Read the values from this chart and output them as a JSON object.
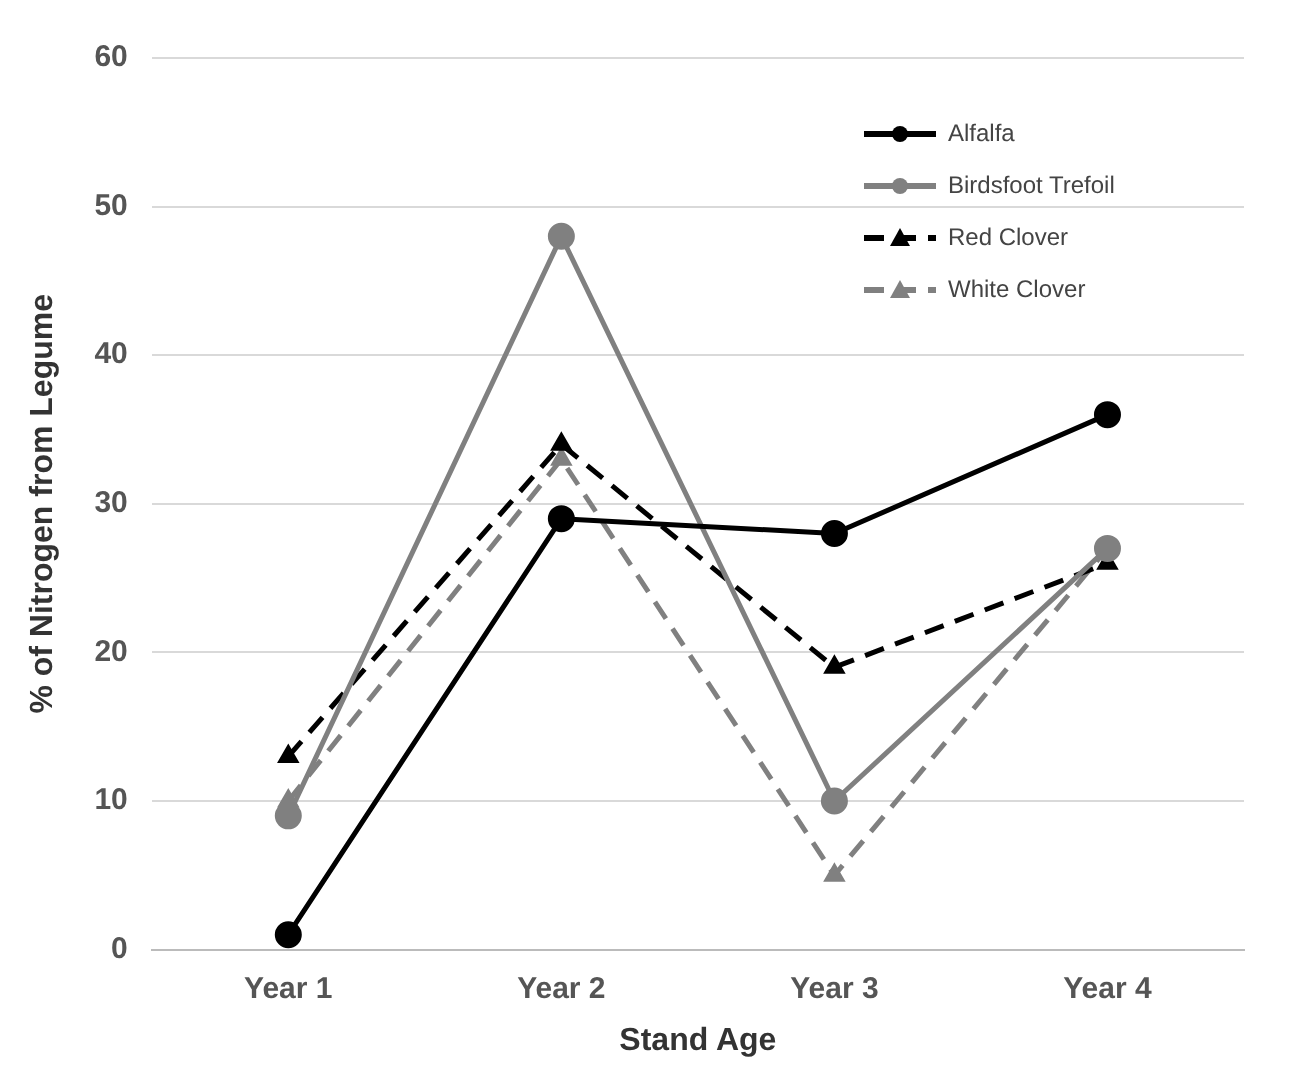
{
  "chart_data": {
    "type": "line",
    "xlabel": "Stand Age",
    "ylabel": "% of Nitrogen from Legume",
    "categories": [
      "Year 1",
      "Year 2",
      "Year 3",
      "Year 4"
    ],
    "series": [
      {
        "name": "Alfalfa",
        "color": "#000000",
        "values": [
          1,
          29,
          28,
          36
        ],
        "marker": "circle",
        "line_style": "solid"
      },
      {
        "name": "Birdsfoot Trefoil",
        "color": "#808080",
        "values": [
          9,
          48,
          10,
          27
        ],
        "marker": "circle",
        "line_style": "solid"
      },
      {
        "name": "Red Clover",
        "color": "#000000",
        "values": [
          13,
          34,
          19,
          26
        ],
        "marker": "triangle",
        "line_style": "dashed"
      },
      {
        "name": "White Clover",
        "color": "#808080",
        "values": [
          10,
          33,
          5,
          27
        ],
        "marker": "triangle",
        "line_style": "dashed"
      }
    ],
    "ylim": [
      0,
      60
    ],
    "yticks": [
      0,
      10,
      20,
      30,
      40,
      50,
      60
    ],
    "grid": "y",
    "legend": "top right"
  }
}
